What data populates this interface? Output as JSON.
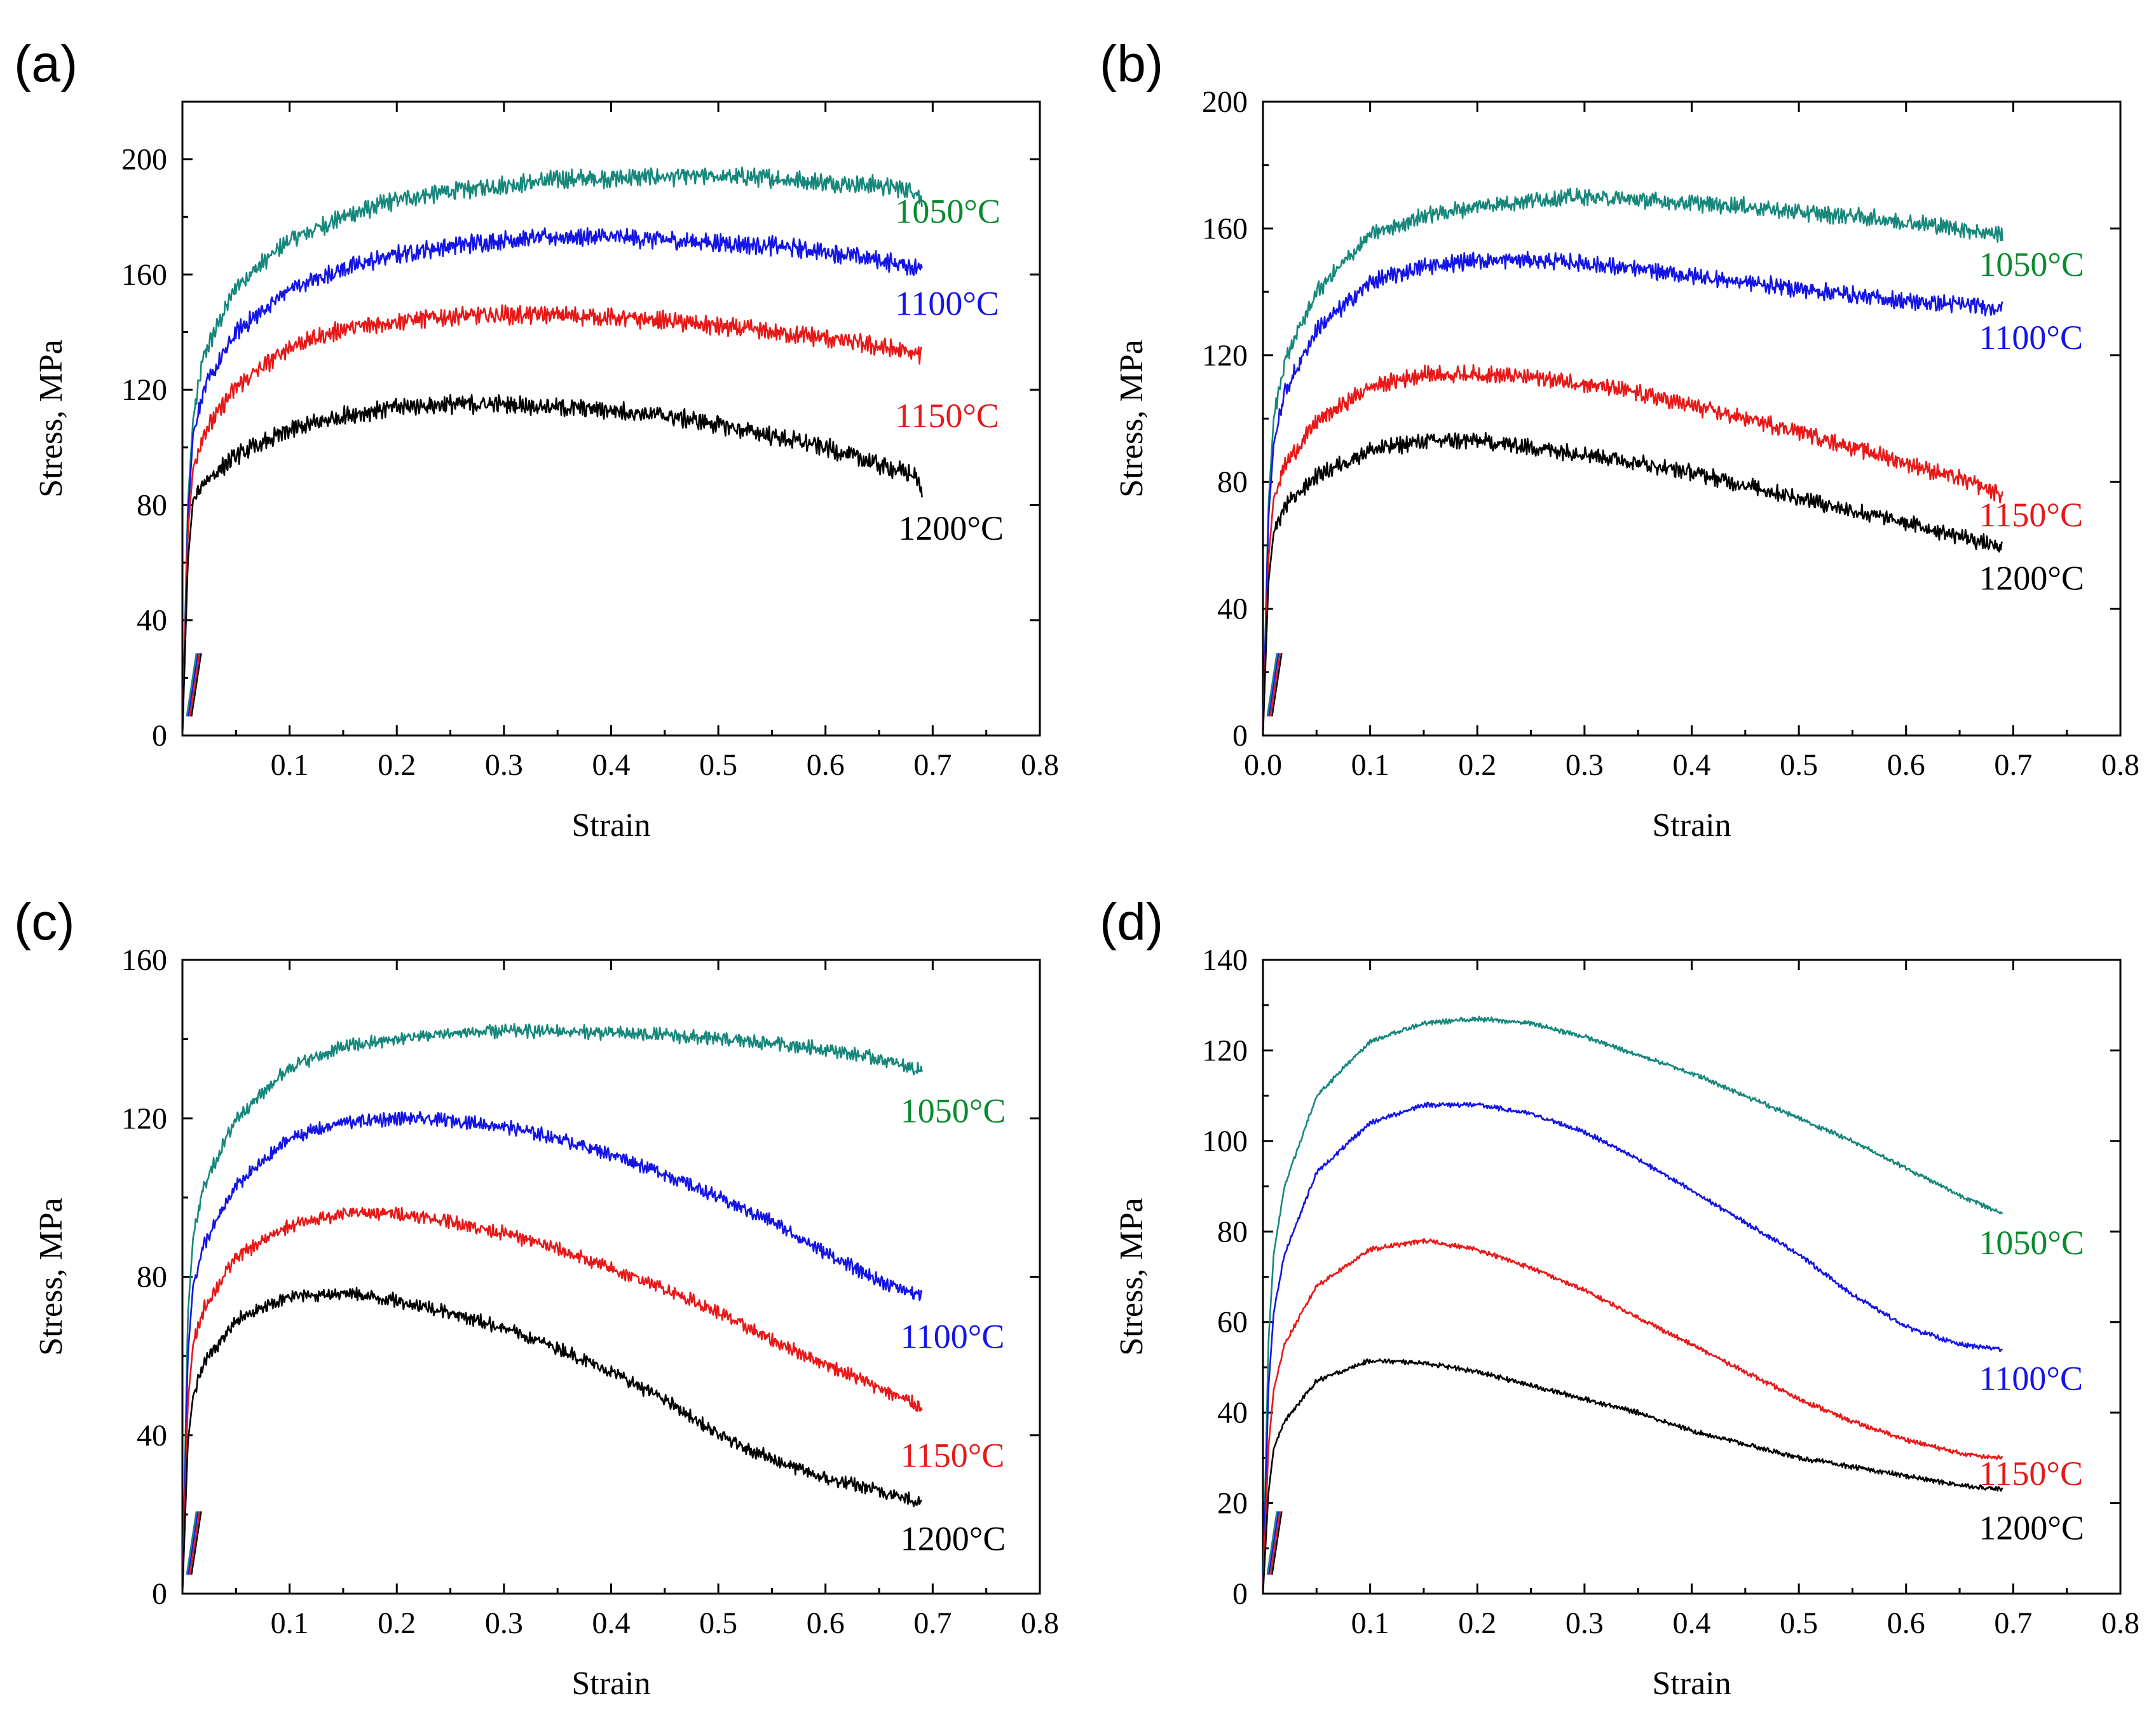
{
  "colors": {
    "1050": "#17877c",
    "1100": "#1414e6",
    "1150": "#e81818",
    "1200": "#000000",
    "label_1050": "#0a8a2e"
  },
  "chart_data": [
    {
      "type": "line",
      "panel": "(a)",
      "xlabel": "Strain",
      "ylabel": "Stress, MPa",
      "xlim": [
        0,
        0.8
      ],
      "ylim": [
        0,
        220
      ],
      "xticks": [
        0.1,
        0.2,
        0.3,
        0.4,
        0.5,
        0.6,
        0.7,
        0.8
      ],
      "xtick_labels": [
        "0.1",
        "0.2",
        "0.3",
        "0.4",
        "0.5",
        "0.6",
        "0.7",
        "0.8"
      ],
      "yticks": [
        0,
        40,
        80,
        120,
        160,
        200
      ],
      "ytick_labels": [
        "0",
        "40",
        "80",
        "120",
        "160",
        "200"
      ],
      "noise": 2.4,
      "series": [
        {
          "name": "1050°C",
          "color_key": "1050",
          "label": "1050°C",
          "label_color_key": "label_1050",
          "label_at": [
            0.665,
            178
          ],
          "x": [
            0,
            0.005,
            0.01,
            0.02,
            0.05,
            0.1,
            0.15,
            0.2,
            0.25,
            0.3,
            0.35,
            0.4,
            0.45,
            0.5,
            0.55,
            0.6,
            0.65,
            0.685,
            0.69
          ],
          "y": [
            0,
            80,
            110,
            132,
            156,
            172,
            180,
            186,
            189,
            191,
            193,
            193.5,
            194,
            194,
            193.5,
            192,
            191,
            189,
            185
          ]
        },
        {
          "name": "1100°C",
          "color_key": "1100",
          "label": "1100°C",
          "label_color_key": "1100",
          "label_at": [
            0.665,
            146
          ],
          "x": [
            0,
            0.005,
            0.01,
            0.02,
            0.05,
            0.1,
            0.15,
            0.2,
            0.25,
            0.3,
            0.35,
            0.4,
            0.45,
            0.5,
            0.55,
            0.6,
            0.65,
            0.69
          ],
          "y": [
            0,
            75,
            105,
            120,
            140,
            155,
            162,
            167,
            170,
            172,
            173,
            173,
            172,
            171,
            170,
            168,
            165,
            162
          ]
        },
        {
          "name": "1150°C",
          "color_key": "1150",
          "label": "1150°C",
          "label_color_key": "1150",
          "label_at": [
            0.665,
            107
          ],
          "x": [
            0,
            0.005,
            0.01,
            0.02,
            0.05,
            0.1,
            0.15,
            0.2,
            0.25,
            0.3,
            0.35,
            0.4,
            0.45,
            0.5,
            0.55,
            0.6,
            0.65,
            0.69
          ],
          "y": [
            0,
            70,
            93,
            105,
            121,
            135,
            141,
            144,
            145.5,
            146,
            146,
            145,
            144,
            142,
            140,
            138,
            135,
            132
          ]
        },
        {
          "name": "1200°C",
          "color_key": "1200",
          "label": "1200°C",
          "label_color_key": "1200",
          "label_at": [
            0.668,
            68
          ],
          "x": [
            0,
            0.005,
            0.01,
            0.02,
            0.05,
            0.1,
            0.15,
            0.2,
            0.25,
            0.3,
            0.35,
            0.4,
            0.45,
            0.5,
            0.55,
            0.6,
            0.65,
            0.685,
            0.69
          ],
          "y": [
            0,
            60,
            82,
            88,
            97,
            106,
            111,
            114,
            115,
            115,
            114,
            113,
            111,
            108,
            104,
            100,
            94,
            90,
            83
          ]
        }
      ]
    },
    {
      "type": "line",
      "panel": "(b)",
      "xlabel": "Strain",
      "ylabel": "Stress, MPa",
      "xlim": [
        0,
        0.8
      ],
      "ylim": [
        0,
        200
      ],
      "xticks": [
        0.0,
        0.1,
        0.2,
        0.3,
        0.4,
        0.5,
        0.6,
        0.7,
        0.8
      ],
      "xtick_labels": [
        "0.0",
        "0.1",
        "0.2",
        "0.3",
        "0.4",
        "0.5",
        "0.6",
        "0.7",
        "0.8"
      ],
      "yticks": [
        0,
        40,
        80,
        120,
        160,
        200
      ],
      "ytick_labels": [
        "0",
        "40",
        "80",
        "120",
        "160",
        "200"
      ],
      "noise": 2.0,
      "series": [
        {
          "name": "1050°C",
          "color_key": "1050",
          "label": "1050°C",
          "label_color_key": "label_1050",
          "label_at": [
            0.668,
            145
          ],
          "x": [
            0,
            0.005,
            0.01,
            0.02,
            0.05,
            0.1,
            0.15,
            0.2,
            0.25,
            0.3,
            0.35,
            0.4,
            0.45,
            0.5,
            0.55,
            0.6,
            0.65,
            0.69
          ],
          "y": [
            0,
            72,
            100,
            118,
            140,
            158,
            164,
            167,
            169,
            170,
            169,
            168,
            167,
            165,
            164,
            162,
            160,
            158
          ]
        },
        {
          "name": "1100°C",
          "color_key": "1100",
          "label": "1100°C",
          "label_color_key": "1100",
          "label_at": [
            0.668,
            122
          ],
          "x": [
            0,
            0.005,
            0.01,
            0.02,
            0.05,
            0.1,
            0.15,
            0.2,
            0.25,
            0.3,
            0.35,
            0.4,
            0.45,
            0.5,
            0.55,
            0.6,
            0.65,
            0.69
          ],
          "y": [
            0,
            68,
            92,
            108,
            128,
            143,
            148,
            150,
            150,
            149,
            147,
            145,
            143,
            141,
            139,
            137,
            136,
            135
          ]
        },
        {
          "name": "1150°C",
          "color_key": "1150",
          "label": "1150°C",
          "label_color_key": "1150",
          "label_at": [
            0.668,
            66
          ],
          "x": [
            0,
            0.005,
            0.01,
            0.02,
            0.05,
            0.1,
            0.15,
            0.2,
            0.25,
            0.3,
            0.35,
            0.4,
            0.45,
            0.5,
            0.55,
            0.6,
            0.65,
            0.69
          ],
          "y": [
            0,
            55,
            75,
            85,
            99,
            110,
            114,
            114,
            113,
            111,
            108,
            104,
            100,
            96,
            91,
            86,
            81,
            76
          ]
        },
        {
          "name": "1200°C",
          "color_key": "1200",
          "label": "1200°C",
          "label_color_key": "1200",
          "label_at": [
            0.668,
            46
          ],
          "x": [
            0,
            0.005,
            0.01,
            0.02,
            0.05,
            0.1,
            0.15,
            0.2,
            0.25,
            0.3,
            0.35,
            0.4,
            0.45,
            0.5,
            0.55,
            0.6,
            0.65,
            0.69
          ],
          "y": [
            0,
            48,
            64,
            72,
            82,
            90,
            93,
            93,
            91,
            89,
            86,
            83,
            79,
            75,
            71,
            67,
            63,
            59
          ]
        }
      ]
    },
    {
      "type": "line",
      "panel": "(c)",
      "xlabel": "Strain",
      "ylabel": "Stress, MPa",
      "xlim": [
        0,
        0.8
      ],
      "ylim": [
        0,
        160
      ],
      "xticks": [
        0.1,
        0.2,
        0.3,
        0.4,
        0.5,
        0.6,
        0.7,
        0.8
      ],
      "xtick_labels": [
        "0.1",
        "0.2",
        "0.3",
        "0.4",
        "0.5",
        "0.6",
        "0.7",
        "0.8"
      ],
      "yticks": [
        0,
        40,
        80,
        120,
        160
      ],
      "ytick_labels": [
        "0",
        "40",
        "80",
        "120",
        "160"
      ],
      "noise": 1.3,
      "series": [
        {
          "name": "1050°C",
          "color_key": "1050",
          "label": "1050°C",
          "label_color_key": "label_1050",
          "label_at": [
            0.67,
            119
          ],
          "x": [
            0,
            0.005,
            0.01,
            0.02,
            0.05,
            0.1,
            0.15,
            0.2,
            0.25,
            0.3,
            0.35,
            0.4,
            0.45,
            0.5,
            0.55,
            0.6,
            0.65,
            0.69
          ],
          "y": [
            0,
            70,
            90,
            103,
            120,
            133,
            138,
            140,
            141.5,
            142,
            142,
            141.5,
            141,
            140,
            139,
            137.5,
            135,
            132
          ]
        },
        {
          "name": "1100°C",
          "color_key": "1100",
          "label": "1100°C",
          "label_color_key": "1100",
          "label_at": [
            0.67,
            62
          ],
          "x": [
            0,
            0.005,
            0.01,
            0.02,
            0.05,
            0.1,
            0.15,
            0.2,
            0.25,
            0.3,
            0.35,
            0.4,
            0.45,
            0.5,
            0.55,
            0.6,
            0.65,
            0.69
          ],
          "y": [
            0,
            60,
            78,
            88,
            103,
            115,
            119,
            120,
            119.5,
            118,
            115,
            111,
            106,
            100,
            94,
            86,
            79,
            75
          ]
        },
        {
          "name": "1150°C",
          "color_key": "1150",
          "label": "1150°C",
          "label_color_key": "1150",
          "label_at": [
            0.67,
            32
          ],
          "x": [
            0,
            0.005,
            0.01,
            0.02,
            0.05,
            0.1,
            0.15,
            0.2,
            0.25,
            0.3,
            0.35,
            0.4,
            0.45,
            0.5,
            0.55,
            0.6,
            0.65,
            0.69
          ],
          "y": [
            0,
            48,
            63,
            72,
            85,
            93,
            96,
            96,
            94,
            91,
            87,
            82,
            77,
            71,
            64,
            58,
            52,
            47
          ]
        },
        {
          "name": "1200°C",
          "color_key": "1200",
          "label": "1200°C",
          "label_color_key": "1200",
          "label_at": [
            0.67,
            11
          ],
          "x": [
            0,
            0.005,
            0.01,
            0.02,
            0.05,
            0.1,
            0.15,
            0.2,
            0.25,
            0.3,
            0.35,
            0.4,
            0.45,
            0.5,
            0.55,
            0.6,
            0.65,
            0.69
          ],
          "y": [
            0,
            38,
            50,
            58,
            69,
            75,
            76,
            74,
            71,
            67,
            62,
            56,
            49,
            40,
            34,
            29,
            26,
            23
          ]
        }
      ]
    },
    {
      "type": "line",
      "panel": "(d)",
      "xlabel": "Strain",
      "ylabel": "Stress, MPa",
      "xlim": [
        0,
        0.8
      ],
      "ylim": [
        0,
        140
      ],
      "xticks": [
        0.1,
        0.2,
        0.3,
        0.4,
        0.5,
        0.6,
        0.7,
        0.8
      ],
      "xtick_labels": [
        "0.1",
        "0.2",
        "0.3",
        "0.4",
        "0.5",
        "0.6",
        "0.7",
        "0.8"
      ],
      "yticks": [
        0,
        20,
        40,
        60,
        80,
        100,
        120,
        140
      ],
      "ytick_labels": [
        "0",
        "20",
        "40",
        "60",
        "80",
        "100",
        "120",
        "140"
      ],
      "noise": 0.4,
      "series": [
        {
          "name": "1050°C",
          "color_key": "1050",
          "label": "1050°C",
          "label_color_key": "label_1050",
          "label_at": [
            0.668,
            75
          ],
          "x": [
            0,
            0.005,
            0.01,
            0.02,
            0.05,
            0.1,
            0.15,
            0.2,
            0.25,
            0.3,
            0.35,
            0.4,
            0.45,
            0.5,
            0.55,
            0.6,
            0.65,
            0.69
          ],
          "y": [
            0,
            55,
            75,
            90,
            110,
            122,
            126,
            127,
            126,
            123,
            119,
            115,
            110,
            105,
            100,
            94,
            88,
            84
          ]
        },
        {
          "name": "1100°C",
          "color_key": "1100",
          "label": "1100°C",
          "label_color_key": "1100",
          "label_at": [
            0.668,
            45
          ],
          "x": [
            0,
            0.005,
            0.01,
            0.02,
            0.05,
            0.1,
            0.15,
            0.2,
            0.25,
            0.3,
            0.35,
            0.4,
            0.45,
            0.5,
            0.55,
            0.6,
            0.65,
            0.69
          ],
          "y": [
            0,
            45,
            62,
            75,
            93,
            104,
            108,
            108,
            106,
            102,
            96,
            89,
            82,
            75,
            66,
            59,
            55,
            54
          ]
        },
        {
          "name": "1150°C",
          "color_key": "1150",
          "label": "1150°C",
          "label_color_key": "1150",
          "label_at": [
            0.668,
            24
          ],
          "x": [
            0,
            0.005,
            0.01,
            0.02,
            0.05,
            0.1,
            0.15,
            0.2,
            0.25,
            0.3,
            0.35,
            0.4,
            0.45,
            0.5,
            0.55,
            0.6,
            0.65,
            0.69
          ],
          "y": [
            0,
            32,
            45,
            55,
            68,
            76,
            78,
            76,
            72,
            67,
            61,
            55,
            49,
            43,
            38,
            34,
            31,
            30
          ]
        },
        {
          "name": "1200°C",
          "color_key": "1200",
          "label": "1200°C",
          "label_color_key": "1200",
          "label_at": [
            0.668,
            12
          ],
          "x": [
            0,
            0.005,
            0.01,
            0.02,
            0.05,
            0.1,
            0.15,
            0.2,
            0.25,
            0.3,
            0.35,
            0.4,
            0.45,
            0.5,
            0.55,
            0.6,
            0.65,
            0.69
          ],
          "y": [
            0,
            22,
            32,
            38,
            47,
            51.5,
            51,
            49,
            46,
            43,
            40,
            36,
            33,
            30,
            28,
            26,
            24,
            23
          ]
        }
      ]
    }
  ]
}
